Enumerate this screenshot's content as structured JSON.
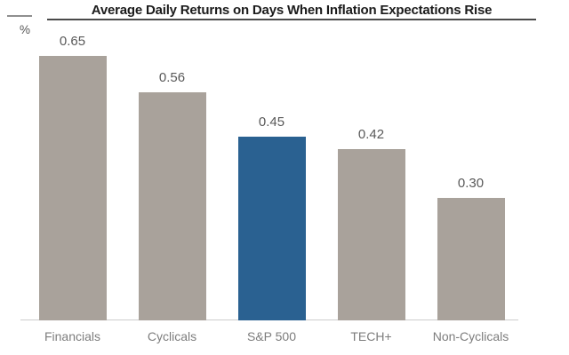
{
  "chart_data": {
    "type": "bar",
    "title": "Average Daily Returns on Days When Inflation Expectations Rise",
    "ylabel": "%",
    "xlabel": "",
    "categories": [
      "Financials",
      "Cyclicals",
      "S&P 500",
      "TECH+",
      "Non-Cyclicals"
    ],
    "values": [
      0.65,
      0.56,
      0.45,
      0.42,
      0.3
    ],
    "value_labels": [
      "0.65",
      "0.56",
      "0.45",
      "0.42",
      "0.30"
    ],
    "ylim": [
      0,
      0.78
    ],
    "grid": false,
    "legend": false,
    "highlight_category": "S&P 500",
    "colors": {
      "bar_default": "#a9a29b",
      "bar_highlight": "#2a6191",
      "title_text": "#1b1b1b",
      "title_underline": "#4a4a4a",
      "value_label": "#595959",
      "category_label": "#7d7d7d",
      "baseline": "#cccccc"
    }
  }
}
